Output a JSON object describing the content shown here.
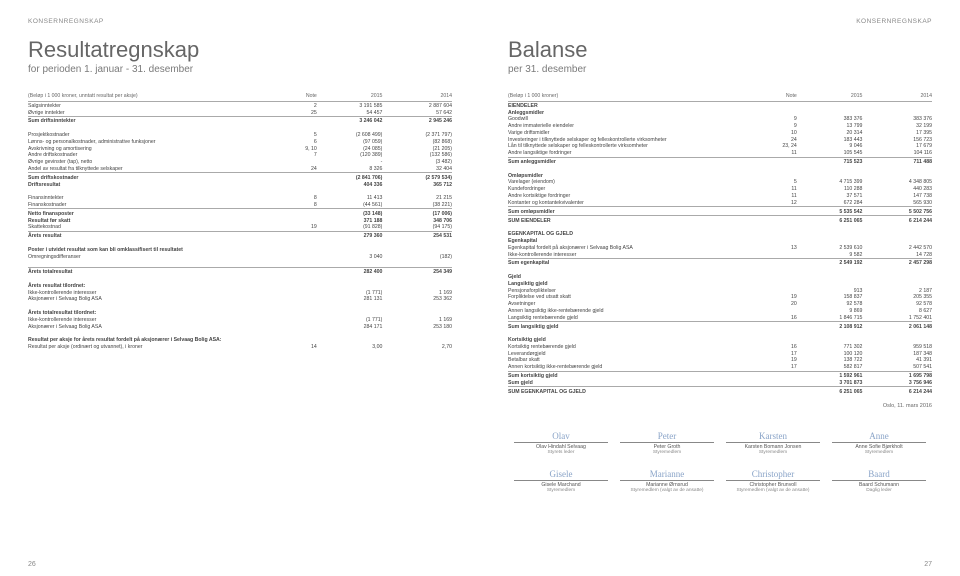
{
  "header": "KONSERNREGNSKAP",
  "page_left": "26",
  "page_right": "27",
  "left": {
    "title": "Resultatregnskap",
    "subtitle": "for perioden 1. januar - 31. desember",
    "table_header": {
      "caption": "(Beløp i 1 000 kroner, unntatt resultat per aksje)",
      "note": "Note",
      "c1": "2015",
      "c2": "2014"
    },
    "rows": [
      {
        "l": "Salgsinntekter",
        "n": "2",
        "a": "3 191 585",
        "b": "2 887 604"
      },
      {
        "l": "Øvrige inntekter",
        "n": "25",
        "a": "54 457",
        "b": "57 642"
      },
      {
        "l": "Sum driftsinntekter",
        "n": "",
        "a": "3 246 042",
        "b": "2 945 246",
        "bold": true,
        "line": true
      },
      {
        "spacer": true
      },
      {
        "l": "Prosjektkostnader",
        "n": "5",
        "a": "(2 608 499)",
        "b": "(2 371 797)"
      },
      {
        "l": "Lønns- og personalkostnader, administrative funksjoner",
        "n": "6",
        "a": "(97 059)",
        "b": "(82 868)"
      },
      {
        "l": "Avskrivning og amortisering",
        "n": "9, 10",
        "a": "(24 085)",
        "b": "(21 205)"
      },
      {
        "l": "Andre driftskostnader",
        "n": "7",
        "a": "(120 389)",
        "b": "(132 586)"
      },
      {
        "l": "Øvrige gevinster (tap), netto",
        "n": "",
        "a": "-",
        "b": "(3 482)"
      },
      {
        "l": "Andel av resultat fra tilknyttede selskaper",
        "n": "24",
        "a": "8 326",
        "b": "32 404"
      },
      {
        "l": "Sum driftskostnader",
        "n": "",
        "a": "(2 841 706)",
        "b": "(2 579 534)",
        "bold": true,
        "line": true
      },
      {
        "l": "Driftsresultat",
        "n": "",
        "a": "404 336",
        "b": "365 712",
        "bold": true
      },
      {
        "spacer": true
      },
      {
        "l": "Finansinntekter",
        "n": "8",
        "a": "11 413",
        "b": "21 215"
      },
      {
        "l": "Finanskostnader",
        "n": "8",
        "a": "(44 561)",
        "b": "(38 221)"
      },
      {
        "l": "Netto finansposter",
        "n": "",
        "a": "(33 148)",
        "b": "(17 006)",
        "bold": true,
        "line": true
      },
      {
        "l": "Resultat før skatt",
        "n": "",
        "a": "371 188",
        "b": "348 706",
        "bold": true
      },
      {
        "l": "Skattekostnad",
        "n": "19",
        "a": "(91 828)",
        "b": "(94 175)"
      },
      {
        "l": "Årets resultat",
        "n": "",
        "a": "279 360",
        "b": "254 531",
        "bold": true,
        "line": true
      },
      {
        "spacer": true
      },
      {
        "l": "Poster i utvidet resultat som kan bli omklassifisert til resultatet",
        "n": "",
        "a": "",
        "b": "",
        "bold": true
      },
      {
        "l": "Omregningsdifferanser",
        "n": "",
        "a": "3 040",
        "b": "(182)"
      },
      {
        "spacer": true
      },
      {
        "l": "Årets totalresultat",
        "n": "",
        "a": "282 400",
        "b": "254 349",
        "bold": true,
        "line": true
      },
      {
        "spacer": true
      },
      {
        "l": "Årets resultat tilordnet:",
        "n": "",
        "a": "",
        "b": "",
        "bold": true
      },
      {
        "l": "Ikke-kontrollerende interesser",
        "n": "",
        "a": "(1 771)",
        "b": "1 169"
      },
      {
        "l": "Aksjonærer i Selvaag Bolig ASA",
        "n": "",
        "a": "281 131",
        "b": "253 362"
      },
      {
        "spacer": true
      },
      {
        "l": "Årets totalresultat tilordnet:",
        "n": "",
        "a": "",
        "b": "",
        "bold": true
      },
      {
        "l": "Ikke-kontrollerende interesser",
        "n": "",
        "a": "(1 771)",
        "b": "1 169"
      },
      {
        "l": "Aksjonærer i Selvaag Bolig ASA",
        "n": "",
        "a": "284 171",
        "b": "253 180"
      },
      {
        "spacer": true
      },
      {
        "l": "Resultat per aksje for årets resultat fordelt på aksjonærer i Selvaag Bolig ASA:",
        "n": "",
        "a": "",
        "b": "",
        "bold": true
      },
      {
        "l": "Resultat per aksje (ordinært og utvannet), i kroner",
        "n": "14",
        "a": "3,00",
        "b": "2,70"
      }
    ]
  },
  "right": {
    "title": "Balanse",
    "subtitle": "per 31. desember",
    "table_header": {
      "caption": "(Beløp i 1 000 kroner)",
      "note": "Note",
      "c1": "2015",
      "c2": "2014"
    },
    "rows": [
      {
        "l": "EIENDELER",
        "bold": true
      },
      {
        "l": "Anleggsmidler",
        "bold": true
      },
      {
        "l": "Goodwill",
        "n": "9",
        "a": "383 376",
        "b": "383 376"
      },
      {
        "l": "Andre immaterielle eiendeler",
        "n": "9",
        "a": "13 799",
        "b": "32 199"
      },
      {
        "l": "Varige driftsmidler",
        "n": "10",
        "a": "20 314",
        "b": "17 395"
      },
      {
        "l": "Investeringer i tilknyttede selskaper og felleskontrollerte virksomheter",
        "n": "24",
        "a": "183 443",
        "b": "156 723"
      },
      {
        "l": "Lån til tilknyttede selskaper og felleskontrollerte virksomheter",
        "n": "23, 24",
        "a": "9 046",
        "b": "17 679"
      },
      {
        "l": "Andre langsiktige fordringer",
        "n": "11",
        "a": "105 545",
        "b": "104 116"
      },
      {
        "l": "Sum anleggsmidler",
        "a": "715 523",
        "b": "711 488",
        "bold": true,
        "line": true
      },
      {
        "spacer": true
      },
      {
        "l": "Omløpsmidler",
        "bold": true
      },
      {
        "l": "Varelager (eiendom)",
        "n": "5",
        "a": "4 715 399",
        "b": "4 348 805"
      },
      {
        "l": "Kundefordringer",
        "n": "11",
        "a": "110 288",
        "b": "440 283"
      },
      {
        "l": "Andre kortsiktige fordringer",
        "n": "11",
        "a": "37 571",
        "b": "147 738"
      },
      {
        "l": "Kontanter og kontantekvivalenter",
        "n": "12",
        "a": "672 284",
        "b": "565 930"
      },
      {
        "l": "Sum omløpsmidler",
        "a": "5 535 542",
        "b": "5 502 756",
        "bold": true,
        "line": true
      },
      {
        "l": "SUM EIENDELER",
        "a": "6 251 065",
        "b": "6 214 244",
        "bold": true,
        "line": true
      },
      {
        "spacer": true
      },
      {
        "l": "EGENKAPITAL OG GJELD",
        "bold": true
      },
      {
        "l": "Egenkapital",
        "bold": true
      },
      {
        "l": "Egenkapital fordelt på aksjonærer i Selvaag Bolig ASA",
        "n": "13",
        "a": "2 539 610",
        "b": "2 442 570"
      },
      {
        "l": "Ikke-kontrollerende interesser",
        "a": "9 582",
        "b": "14 728"
      },
      {
        "l": "Sum egenkapital",
        "a": "2 549 192",
        "b": "2 457 298",
        "bold": true,
        "line": true
      },
      {
        "spacer": true
      },
      {
        "l": "Gjeld",
        "bold": true
      },
      {
        "l": "Langsiktig gjeld",
        "bold": true
      },
      {
        "l": "Pensjonsforpliktelser",
        "a": "913",
        "b": "2 187"
      },
      {
        "l": "Forpliktelse ved utsatt skatt",
        "n": "19",
        "a": "158 837",
        "b": "205 355"
      },
      {
        "l": "Avsetninger",
        "n": "20",
        "a": "92 578",
        "b": "92 578"
      },
      {
        "l": "Annen langsiktig ikke-rentebærende gjeld",
        "a": "9 869",
        "b": "8 627"
      },
      {
        "l": "Langsiktig rentebærende gjeld",
        "n": "16",
        "a": "1 846 715",
        "b": "1 752 401"
      },
      {
        "l": "Sum langsiktig gjeld",
        "a": "2 108 912",
        "b": "2 061 148",
        "bold": true,
        "line": true
      },
      {
        "spacer": true
      },
      {
        "l": "Kortsiktig gjeld",
        "bold": true
      },
      {
        "l": "Kortsiktig rentebærende gjeld",
        "n": "16",
        "a": "771 302",
        "b": "959 518"
      },
      {
        "l": "Leverandørgjeld",
        "n": "17",
        "a": "100 120",
        "b": "187 348"
      },
      {
        "l": "Betalbar skatt",
        "n": "19",
        "a": "138 722",
        "b": "41 391"
      },
      {
        "l": "Annen kortsiktig ikke-rentebærende gjeld",
        "n": "17",
        "a": "582 817",
        "b": "507 541"
      },
      {
        "l": "Sum kortsiktig gjeld",
        "a": "1 592 961",
        "b": "1 695 798",
        "bold": true,
        "line": true
      },
      {
        "l": "Sum gjeld",
        "a": "3 701 873",
        "b": "3 756 946",
        "bold": true
      },
      {
        "l": "SUM EGENKAPITAL OG GJELD",
        "a": "6 251 065",
        "b": "6 214 244",
        "bold": true,
        "line": true
      }
    ],
    "date": "Oslo, 11. mars 2016",
    "signatures": [
      [
        {
          "name": "Olav Hindahl Selvaag",
          "role": "Styrets leder"
        },
        {
          "name": "Peter Groth",
          "role": "Styremedlem"
        },
        {
          "name": "Karsten Bomann Jonsen",
          "role": "Styremedlem"
        },
        {
          "name": "Anne Sofie Bjørkholt",
          "role": "Styremedlem"
        }
      ],
      [
        {
          "name": "Gisele Marchand",
          "role": "Styremedlem"
        },
        {
          "name": "Marianne Ørnsrud",
          "role": "Styremedlem (valgt av de ansatte)"
        },
        {
          "name": "Christopher Brunvoll",
          "role": "Styremedlem (valgt av de ansatte)"
        },
        {
          "name": "Baard Schumann",
          "role": "Daglig leder"
        }
      ]
    ]
  }
}
